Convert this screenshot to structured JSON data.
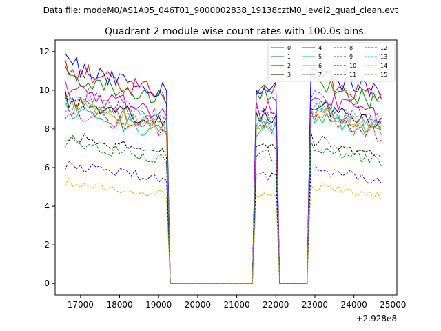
{
  "page": {
    "data_file_label": "Data file: modeM0/AS1A05_046T01_9000002838_19138cztM0_level2_quad_clean.evt"
  },
  "chart_data": {
    "type": "line",
    "title": "Quadrant 2 module wise count rates with 100.0s bins.",
    "xlabel": "",
    "ylabel": "",
    "x_offset_label": "+2.928e8",
    "xlim": [
      16350,
      25100
    ],
    "ylim": [
      -0.6,
      12.6
    ],
    "x_ticks": [
      17000,
      18000,
      19000,
      20000,
      21000,
      22000,
      23000,
      24000,
      25000
    ],
    "y_ticks": [
      0,
      2,
      4,
      6,
      8,
      10,
      12
    ],
    "legend_position": "top-right",
    "segments": [
      {
        "start": 16600,
        "end": 19200
      },
      {
        "start": 21500,
        "end": 22000
      },
      {
        "start": 22900,
        "end": 24700
      }
    ],
    "series": [
      {
        "name": "0",
        "color": "#ff0000",
        "dash": "solid",
        "level": 10.0
      },
      {
        "name": "1",
        "color": "#008000",
        "dash": "solid",
        "level": 9.7
      },
      {
        "name": "2",
        "color": "#0000ff",
        "dash": "solid",
        "level": 10.2
      },
      {
        "name": "3",
        "color": "#000000",
        "dash": "solid",
        "level": 8.6
      },
      {
        "name": "4",
        "color": "#bf00bf",
        "dash": "solid",
        "level": 9.0
      },
      {
        "name": "5",
        "color": "#00bfbf",
        "dash": "solid",
        "level": 8.0
      },
      {
        "name": "6",
        "color": "#bfbf00",
        "dash": "solid",
        "level": 8.3
      },
      {
        "name": "7",
        "color": "#808080",
        "dash": "solid",
        "level": 8.4
      },
      {
        "name": "8",
        "color": "#ff0000",
        "dash": "dashed",
        "level": 8.0
      },
      {
        "name": "9",
        "color": "#008000",
        "dash": "dashed",
        "level": 6.6
      },
      {
        "name": "10",
        "color": "#0000ff",
        "dash": "dashed",
        "level": 5.5
      },
      {
        "name": "11",
        "color": "#000000",
        "dash": "dashed",
        "level": 6.9
      },
      {
        "name": "12",
        "color": "#bf00bf",
        "dash": "dashed",
        "level": 8.9
      },
      {
        "name": "13",
        "color": "#00bfbf",
        "dash": "dashed",
        "level": 8.5
      },
      {
        "name": "14",
        "color": "#bfbf00",
        "dash": "dashed",
        "level": 4.7
      },
      {
        "name": "15",
        "color": "#808080",
        "dash": "dashed",
        "level": 8.3
      }
    ]
  }
}
